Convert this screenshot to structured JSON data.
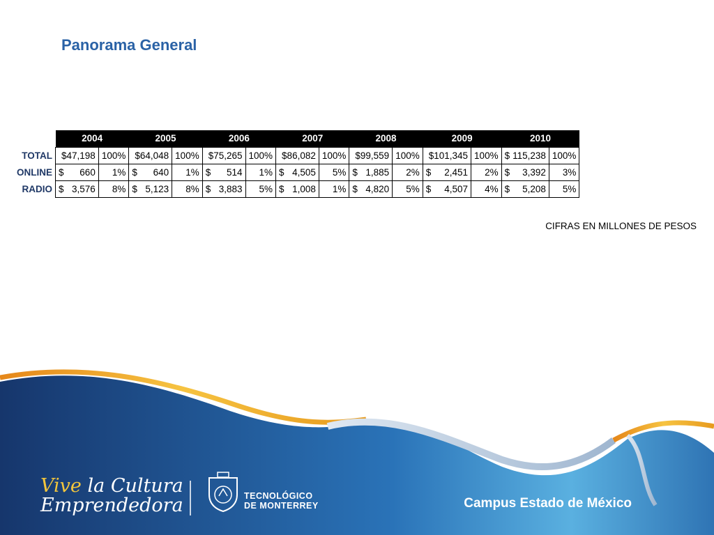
{
  "title": "Panorama General",
  "table": {
    "years": [
      "2004",
      "2005",
      "2006",
      "2007",
      "2008",
      "2009",
      "2010"
    ],
    "rows": [
      {
        "label": "TOTAL",
        "cells": [
          {
            "cur": "",
            "amount": "$47,198",
            "pct": "100%"
          },
          {
            "cur": "",
            "amount": "$64,048",
            "pct": "100%"
          },
          {
            "cur": "",
            "amount": "$75,265",
            "pct": "100%"
          },
          {
            "cur": "",
            "amount": "$86,082",
            "pct": "100%"
          },
          {
            "cur": "",
            "amount": "$99,559",
            "pct": "100%"
          },
          {
            "cur": "",
            "amount": "$101,345",
            "pct": "100%"
          },
          {
            "cur": "$",
            "amount": "115,238",
            "pct": "100%"
          }
        ]
      },
      {
        "label": "ONLINE",
        "cells": [
          {
            "cur": "$",
            "amount": "660",
            "pct": "1%"
          },
          {
            "cur": "$",
            "amount": "640",
            "pct": "1%"
          },
          {
            "cur": "$",
            "amount": "514",
            "pct": "1%"
          },
          {
            "cur": "$",
            "amount": "4,505",
            "pct": "5%"
          },
          {
            "cur": "$",
            "amount": "1,885",
            "pct": "2%"
          },
          {
            "cur": "$",
            "amount": "2,451",
            "pct": "2%"
          },
          {
            "cur": "$",
            "amount": "3,392",
            "pct": "3%"
          }
        ]
      },
      {
        "label": "RADIO",
        "cells": [
          {
            "cur": "$",
            "amount": "3,576",
            "pct": "8%"
          },
          {
            "cur": "$",
            "amount": "5,123",
            "pct": "8%"
          },
          {
            "cur": "$",
            "amount": "3,883",
            "pct": "5%"
          },
          {
            "cur": "$",
            "amount": "1,008",
            "pct": "1%"
          },
          {
            "cur": "$",
            "amount": "4,820",
            "pct": "5%"
          },
          {
            "cur": "$",
            "amount": "4,507",
            "pct": "4%"
          },
          {
            "cur": "$",
            "amount": "5,208",
            "pct": "5%"
          }
        ]
      }
    ]
  },
  "note": "CIFRAS EN MILLONES DE PESOS",
  "footer": {
    "slogan_line1_a": "Vive",
    "slogan_line1_b": "la Cultura",
    "slogan_line2": "Emprendedora",
    "tec_line1": "TECNOLÓGICO",
    "tec_line2": "DE MONTERREY",
    "campus": "Campus Estado de México",
    "shield_icon": "tec-shield-icon"
  },
  "colors": {
    "title": "#2a62a6",
    "row_label": "#1f3866",
    "banner_dark": "#1d3f78",
    "banner_light": "#4f9fd6",
    "ribbon_gold": "#f0a21c"
  }
}
